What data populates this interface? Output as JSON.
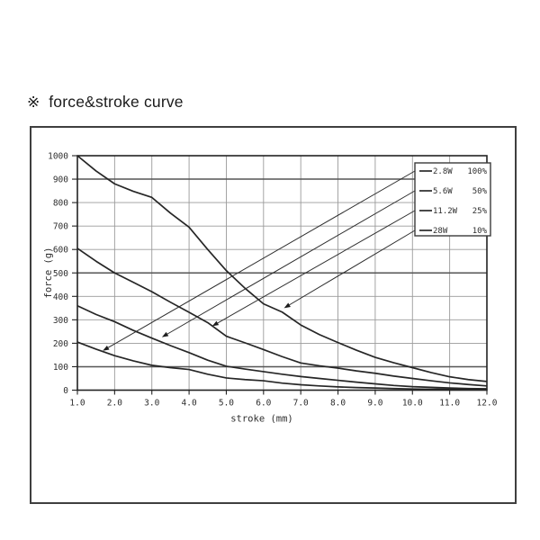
{
  "title": {
    "symbol": "※",
    "text": "force&stroke curve"
  },
  "chart_data": {
    "type": "line",
    "xlabel": "stroke (mm)",
    "ylabel": "force (g)",
    "xlim": [
      1.0,
      12.0
    ],
    "ylim": [
      0,
      1000
    ],
    "x_ticks": [
      "1.0",
      "2.0",
      "3.0",
      "4.0",
      "5.0",
      "6.0",
      "7.0",
      "8.0",
      "9.0",
      "10.0",
      "11.0",
      "12.0"
    ],
    "y_ticks": [
      "0",
      "100",
      "200",
      "300",
      "400",
      "500",
      "600",
      "700",
      "800",
      "900",
      "1000"
    ],
    "grid": true,
    "emphasized_y_gridlines": [
      100,
      500,
      900
    ],
    "legend_position": "top-right",
    "line_color": "#262626",
    "grid_color": "#9a9a9a",
    "emphasized_grid_color": "#555555",
    "x_step": 0.5,
    "series": [
      {
        "name": "2.8W 100%",
        "power": "2.8W",
        "duty": "100%",
        "arrow_tip": [
          1.68,
          168
        ],
        "values": [
          205,
          175,
          147,
          125,
          106,
          96,
          88,
          68,
          52,
          45,
          40,
          30,
          23,
          18,
          14,
          11,
          9,
          7,
          5,
          4,
          4,
          3,
          3
        ]
      },
      {
        "name": "5.6W 50%",
        "power": "5.6W",
        "duty": "50%",
        "arrow_tip": [
          3.27,
          226
        ],
        "values": [
          360,
          323,
          292,
          255,
          222,
          190,
          160,
          128,
          102,
          90,
          79,
          68,
          58,
          50,
          42,
          34,
          27,
          20,
          15,
          12,
          9,
          7,
          6
        ]
      },
      {
        "name": "11.2W 25%",
        "power": "11.2W",
        "duty": "25%",
        "arrow_tip": [
          4.62,
          273
        ],
        "values": [
          605,
          550,
          500,
          460,
          420,
          375,
          332,
          288,
          230,
          202,
          173,
          143,
          116,
          104,
          94,
          82,
          72,
          60,
          50,
          40,
          31,
          24,
          18
        ]
      },
      {
        "name": "28W 10%",
        "power": "28W",
        "duty": "10%",
        "arrow_tip": [
          6.55,
          350
        ],
        "values": [
          1000,
          935,
          880,
          848,
          822,
          755,
          695,
          600,
          510,
          435,
          368,
          333,
          278,
          237,
          203,
          170,
          140,
          117,
          96,
          75,
          57,
          45,
          37
        ]
      }
    ]
  }
}
